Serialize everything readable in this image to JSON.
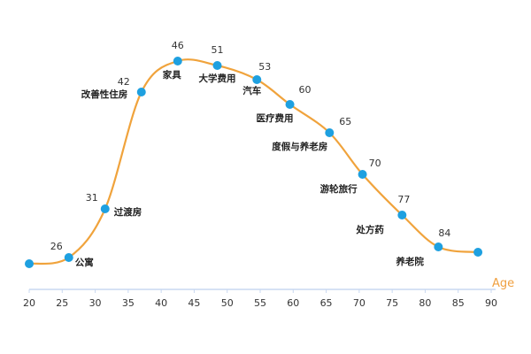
{
  "chart_data": {
    "type": "line",
    "xlabel": "Age",
    "x_ticks": [
      "20",
      "25",
      "30",
      "35",
      "40",
      "45",
      "50",
      "55",
      "60",
      "65",
      "70",
      "75",
      "80",
      "85",
      "90"
    ],
    "xlim": [
      20,
      90
    ],
    "colors": {
      "line": "#f0a33c",
      "point": "#1ea0e0",
      "axis": "#c8d8f0",
      "age": "#f0a040"
    },
    "points": [
      {
        "x": 20.0,
        "number": "",
        "name": ""
      },
      {
        "x": 26.0,
        "number": "26",
        "name": "公寓"
      },
      {
        "x": 31.5,
        "number": "31",
        "name": "过渡房"
      },
      {
        "x": 37.0,
        "number": "42",
        "name": "改善性住房"
      },
      {
        "x": 42.5,
        "number": "46",
        "name": "家具"
      },
      {
        "x": 48.5,
        "number": "51",
        "name": "大学费用"
      },
      {
        "x": 54.5,
        "number": "53",
        "name": "汽车"
      },
      {
        "x": 59.5,
        "number": "60",
        "name": "医疗费用"
      },
      {
        "x": 65.5,
        "number": "65",
        "name": "度假与养老房"
      },
      {
        "x": 70.5,
        "number": "70",
        "name": "游轮旅行"
      },
      {
        "x": 76.5,
        "number": "77",
        "name": "处方药"
      },
      {
        "x": 82.0,
        "number": "84",
        "name": "养老院"
      },
      {
        "x": 88.0,
        "number": "",
        "name": ""
      }
    ]
  }
}
